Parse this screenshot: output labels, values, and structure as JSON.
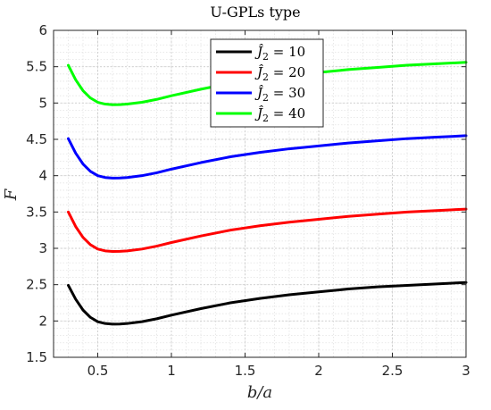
{
  "chart_data": {
    "type": "line",
    "title": "U-GPLs type",
    "xlabel": "b/a",
    "ylabel": "F",
    "xlim": [
      0.2,
      3.0
    ],
    "ylim": [
      1.5,
      6.0
    ],
    "xticks": [
      0.5,
      1,
      1.5,
      2,
      2.5,
      3
    ],
    "xtick_labels": [
      "0.5",
      "1",
      "1.5",
      "2",
      "2.5",
      "3"
    ],
    "yticks": [
      1.5,
      2,
      2.5,
      3,
      3.5,
      4,
      4.5,
      5,
      5.5,
      6
    ],
    "ytick_labels": [
      "1.5",
      "2",
      "2.5",
      "3",
      "3.5",
      "4",
      "4.5",
      "5",
      "5.5",
      "6"
    ],
    "grid": true,
    "minor_grid": true,
    "legend_position": "top-center",
    "x": [
      0.3,
      0.35,
      0.4,
      0.45,
      0.5,
      0.55,
      0.6,
      0.65,
      0.7,
      0.8,
      0.9,
      1.0,
      1.2,
      1.4,
      1.6,
      1.8,
      2.0,
      2.2,
      2.4,
      2.6,
      2.8,
      3.0
    ],
    "series": [
      {
        "name": "Ĵ2 = 10",
        "color": "#000000",
        "values": [
          2.49,
          2.3,
          2.15,
          2.05,
          1.99,
          1.965,
          1.957,
          1.958,
          1.965,
          1.99,
          2.03,
          2.08,
          2.17,
          2.25,
          2.31,
          2.36,
          2.4,
          2.44,
          2.47,
          2.49,
          2.51,
          2.53
        ]
      },
      {
        "name": "Ĵ2 = 20",
        "color": "#ff0000",
        "values": [
          3.5,
          3.3,
          3.15,
          3.05,
          2.99,
          2.965,
          2.957,
          2.958,
          2.965,
          2.99,
          3.03,
          3.08,
          3.17,
          3.25,
          3.31,
          3.36,
          3.4,
          3.44,
          3.47,
          3.5,
          3.52,
          3.54
        ]
      },
      {
        "name": "Ĵ2 = 30",
        "color": "#0000ff",
        "values": [
          4.51,
          4.31,
          4.16,
          4.06,
          4.0,
          3.975,
          3.967,
          3.968,
          3.975,
          4.0,
          4.04,
          4.09,
          4.18,
          4.26,
          4.32,
          4.37,
          4.41,
          4.45,
          4.48,
          4.51,
          4.53,
          4.55
        ]
      },
      {
        "name": "Ĵ2 = 40",
        "color": "#00ff00",
        "values": [
          5.52,
          5.32,
          5.17,
          5.07,
          5.01,
          4.985,
          4.977,
          4.978,
          4.985,
          5.01,
          5.05,
          5.1,
          5.19,
          5.27,
          5.33,
          5.38,
          5.42,
          5.46,
          5.49,
          5.52,
          5.54,
          5.56
        ]
      }
    ],
    "legend_entries": [
      {
        "symbol": "Ĵ",
        "sub": "2",
        "rest": " = 10"
      },
      {
        "symbol": "Ĵ",
        "sub": "2",
        "rest": " = 20"
      },
      {
        "symbol": "Ĵ",
        "sub": "2",
        "rest": " = 30"
      },
      {
        "symbol": "Ĵ",
        "sub": "2",
        "rest": " = 40"
      }
    ]
  }
}
